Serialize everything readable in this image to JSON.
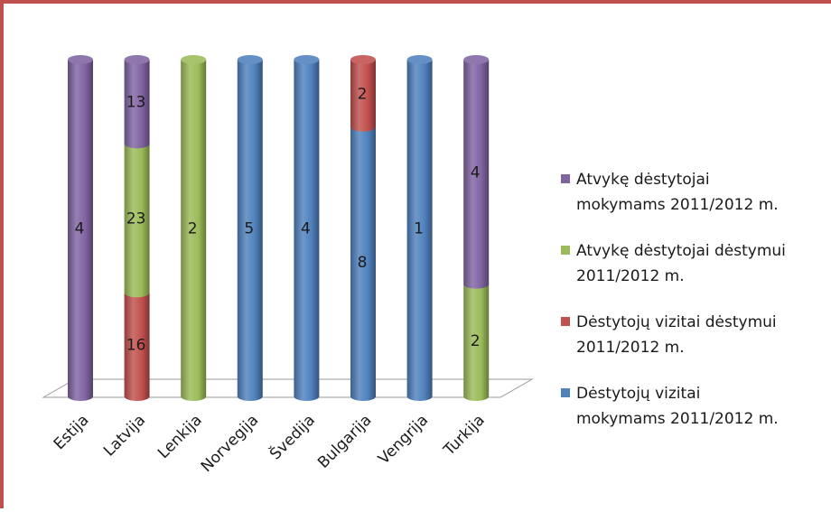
{
  "colors": {
    "frame": "#c0504d",
    "purple": "#8064a2",
    "green": "#9bbb59",
    "red": "#c0504d",
    "blue": "#4f81bd"
  },
  "chart_data": {
    "type": "bar",
    "stacked": true,
    "style": "3d-cylinder-100-percent",
    "title": "",
    "xlabel": "",
    "ylabel": "",
    "categories": [
      "Estija",
      "Latvija",
      "Lenkija",
      "Norvegija",
      "Švedija",
      "Bulgarija",
      "Vengrija",
      "Turkija"
    ],
    "legend_position": "right",
    "series": [
      {
        "name": "Dėstytojų vizitai mokymams 2011/2012 m.",
        "color": "blue",
        "values": [
          0,
          0,
          0,
          5,
          4,
          8,
          1,
          0
        ]
      },
      {
        "name": "Dėstytojų vizitai dėstymui 2011/2012 m.",
        "color": "red",
        "values": [
          0,
          16,
          0,
          0,
          0,
          2,
          0,
          0
        ]
      },
      {
        "name": "Atvykę dėstytojai dėstymui 2011/2012 m.",
        "color": "green",
        "values": [
          0,
          23,
          2,
          0,
          0,
          0,
          0,
          2
        ]
      },
      {
        "name": "Atvykę dėstytojai mokymams 2011/2012 m.",
        "color": "purple",
        "values": [
          4,
          13,
          0,
          0,
          0,
          0,
          0,
          4
        ]
      }
    ],
    "legend_order": [
      3,
      2,
      1,
      0
    ],
    "legend_lines": [
      [
        "Atvykę dėstytojai",
        "mokymams 2011/2012 m."
      ],
      [
        "Atvykę dėstytojai dėstymui",
        "2011/2012 m."
      ],
      [
        "Dėstytojų vizitai dėstymui",
        "2011/2012 m."
      ],
      [
        "Dėstytojų vizitai",
        "mokymams 2011/2012 m."
      ]
    ]
  }
}
